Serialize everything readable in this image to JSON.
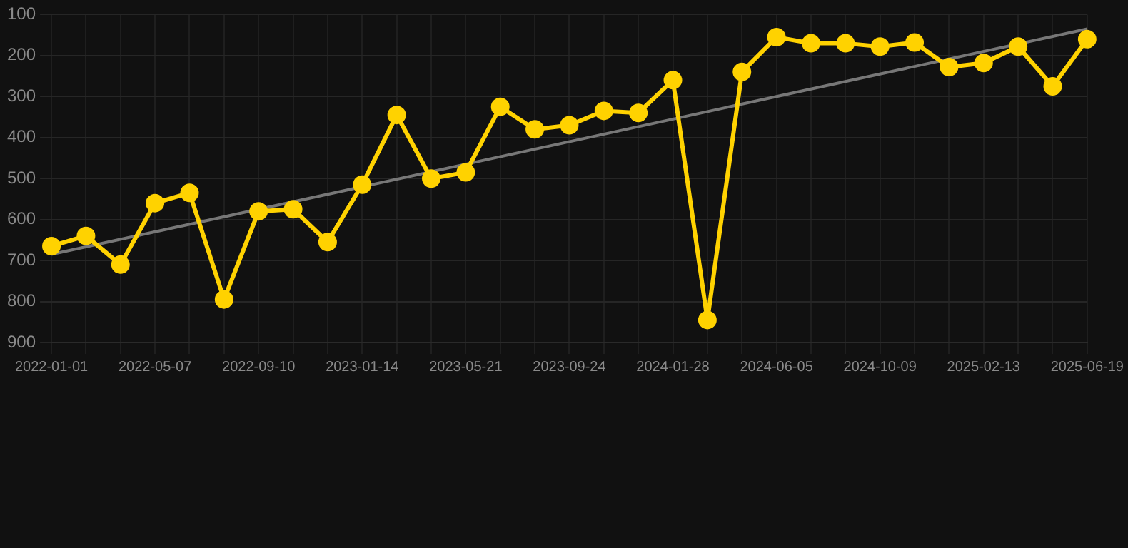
{
  "chart_data": {
    "type": "line",
    "categories": [
      "2022-01-01",
      null,
      null,
      "2022-05-07",
      null,
      null,
      "2022-09-10",
      null,
      null,
      "2023-01-14",
      null,
      null,
      "2023-05-21",
      null,
      null,
      "2023-09-24",
      null,
      null,
      "2024-01-28",
      null,
      null,
      "2024-06-05",
      null,
      null,
      "2024-10-09",
      null,
      null,
      "2025-02-13",
      null,
      null,
      "2025-06-19"
    ],
    "series": [
      {
        "color": "#ffd200",
        "marker": "circle",
        "values": [
          665,
          640,
          710,
          560,
          535,
          795,
          580,
          575,
          655,
          515,
          345,
          500,
          485,
          325,
          380,
          370,
          335,
          340,
          260,
          845,
          240,
          155,
          170,
          170,
          178,
          168,
          228,
          218,
          178,
          275,
          160
        ]
      },
      {
        "type": "line",
        "color": "#777777",
        "marker": "none",
        "values": [
          685,
          null,
          null,
          null,
          null,
          null,
          null,
          null,
          null,
          null,
          null,
          null,
          null,
          null,
          null,
          null,
          null,
          null,
          null,
          null,
          null,
          null,
          null,
          null,
          null,
          null,
          null,
          null,
          null,
          null,
          135
        ]
      }
    ],
    "ylim": [
      900,
      100
    ],
    "yticks": [
      100,
      200,
      300,
      400,
      500,
      600,
      700,
      800,
      900
    ],
    "grid": true,
    "legend": false
  }
}
